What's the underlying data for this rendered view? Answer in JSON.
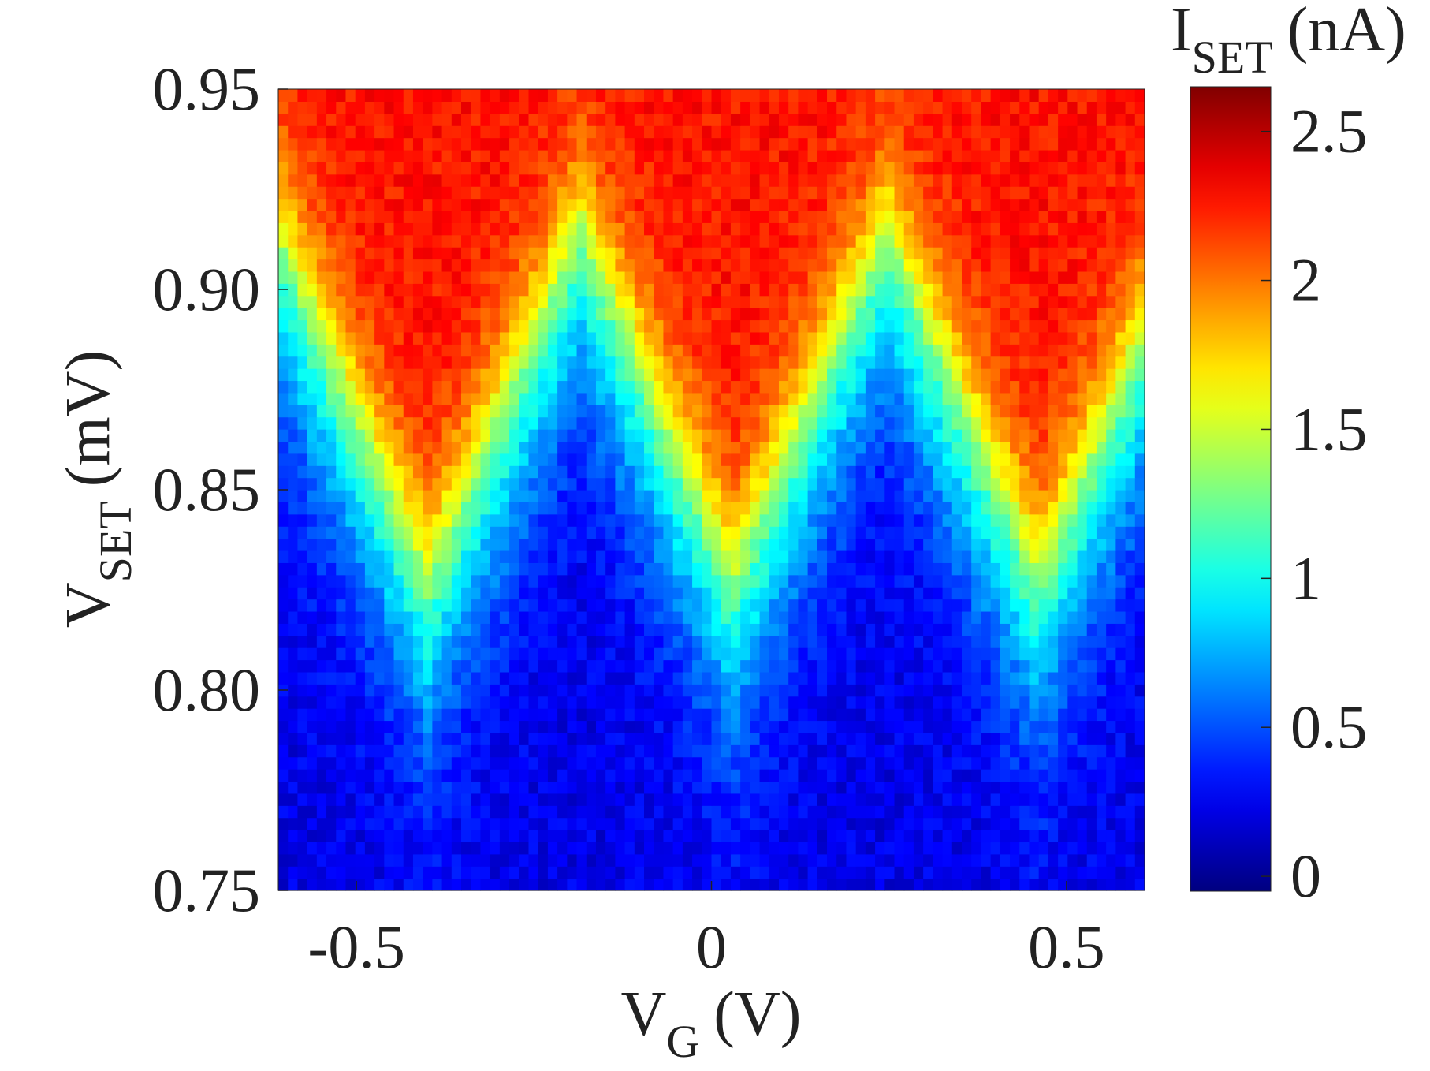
{
  "chart_data": {
    "type": "heatmap",
    "title": "",
    "xlabel": {
      "main": "V",
      "sub": "G",
      "unit": "(V)"
    },
    "ylabel": {
      "main": "V",
      "sub": "SET",
      "unit": "(mV)"
    },
    "xlim": [
      -0.61,
      0.61
    ],
    "ylim": [
      0.75,
      0.95
    ],
    "x_ticks": [
      -0.5,
      0,
      0.5
    ],
    "x_tick_labels": [
      "-0.5",
      "0",
      "0.5"
    ],
    "y_ticks": [
      0.75,
      0.8,
      0.85,
      0.9,
      0.95
    ],
    "y_tick_labels": [
      "0.75",
      "0.80",
      "0.85",
      "0.90",
      "0.95"
    ],
    "colorbar": {
      "label": {
        "main": "I",
        "sub": "SET",
        "unit": "(nA)"
      },
      "colormap": "jet",
      "clim": [
        -0.05,
        2.65
      ],
      "ticks": [
        0,
        0.5,
        1,
        1.5,
        2,
        2.5
      ],
      "tick_labels": [
        "0",
        "0.5",
        "1",
        "1.5",
        "2",
        "2.5"
      ]
    },
    "grid": {
      "x_start": -0.61,
      "x_end": 0.61,
      "nx": 90,
      "y_start": 0.75,
      "y_end": 0.95,
      "ny": 66,
      "pattern": "coulomb-diamond",
      "diamond_period_V": 0.43,
      "diamond_centers_V": [
        -0.41,
        0.03,
        0.46
      ],
      "diamond_valleys_V": [
        -0.19,
        0.24
      ],
      "z_min_nA": 0.15,
      "z_max_nA": 2.3
    }
  }
}
